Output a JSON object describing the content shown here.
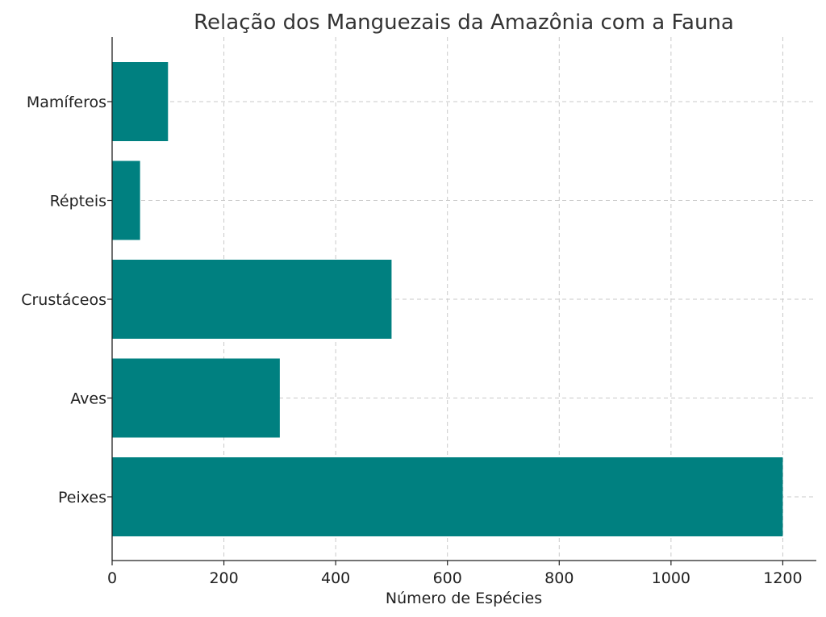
{
  "chart_data": {
    "type": "bar",
    "orientation": "horizontal",
    "title": "Relação dos Manguezais da Amazônia com a Fauna",
    "xlabel": "Número de Espécies",
    "ylabel": "",
    "categories": [
      "Peixes",
      "Aves",
      "Crustáceos",
      "Répteis",
      "Mamíferos"
    ],
    "values": [
      1200,
      300,
      500,
      50,
      100
    ],
    "xlim": [
      0,
      1260
    ],
    "xticks": [
      0,
      200,
      400,
      600,
      800,
      1000,
      1200
    ],
    "grid": true,
    "bar_color": "#008080"
  }
}
